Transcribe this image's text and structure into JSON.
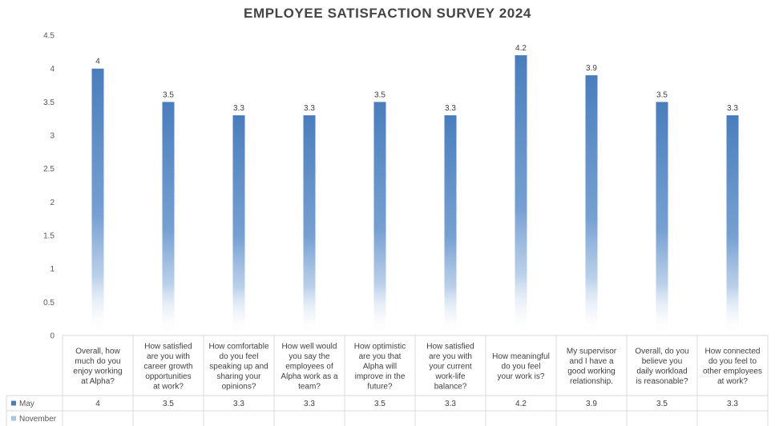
{
  "chart_data": {
    "type": "bar",
    "title": "EMPLOYEE SATISFACTION SURVEY 2024",
    "xlabel": "",
    "ylabel": "",
    "ylim": [
      0,
      4.5
    ],
    "yticks": [
      "0",
      "0.5",
      "1",
      "1.5",
      "2",
      "2.5",
      "3",
      "3.5",
      "4",
      "4.5"
    ],
    "categories": [
      "Overall, how much do you enjoy working at Alpha?",
      "How satisfied are you with career growth opportunities at work?",
      "How comfortable do you feel speaking up and sharing your opinions?",
      "How well would you say the employees of Alpha work as a team?",
      "How optimistic are you that Alpha will improve in the future?",
      "How satisfied are you with your current work-life balance?",
      "How meaningful do you feel your work is?",
      "My supervisor and I have a good working relationship.",
      "Overall, do you believe you daily workload is reasonable?",
      "How connected do you feel to other employees at work?"
    ],
    "series": [
      {
        "name": "May",
        "values": [
          4,
          3.5,
          3.3,
          3.3,
          3.5,
          3.3,
          4.2,
          3.9,
          3.5,
          3.3
        ],
        "value_labels": [
          "4",
          "3.5",
          "3.3",
          "3.3",
          "3.5",
          "3.3",
          "4.2",
          "3.9",
          "3.5",
          "3.3"
        ],
        "color": "#4a7ebb"
      },
      {
        "name": "November",
        "values": [
          null,
          null,
          null,
          null,
          null,
          null,
          null,
          null,
          null,
          null
        ],
        "value_labels": [
          "",
          "",
          "",
          "",
          "",
          "",
          "",
          "",
          "",
          ""
        ],
        "color": "#a9c4e4"
      }
    ],
    "legend": "data-table",
    "grid": false
  }
}
